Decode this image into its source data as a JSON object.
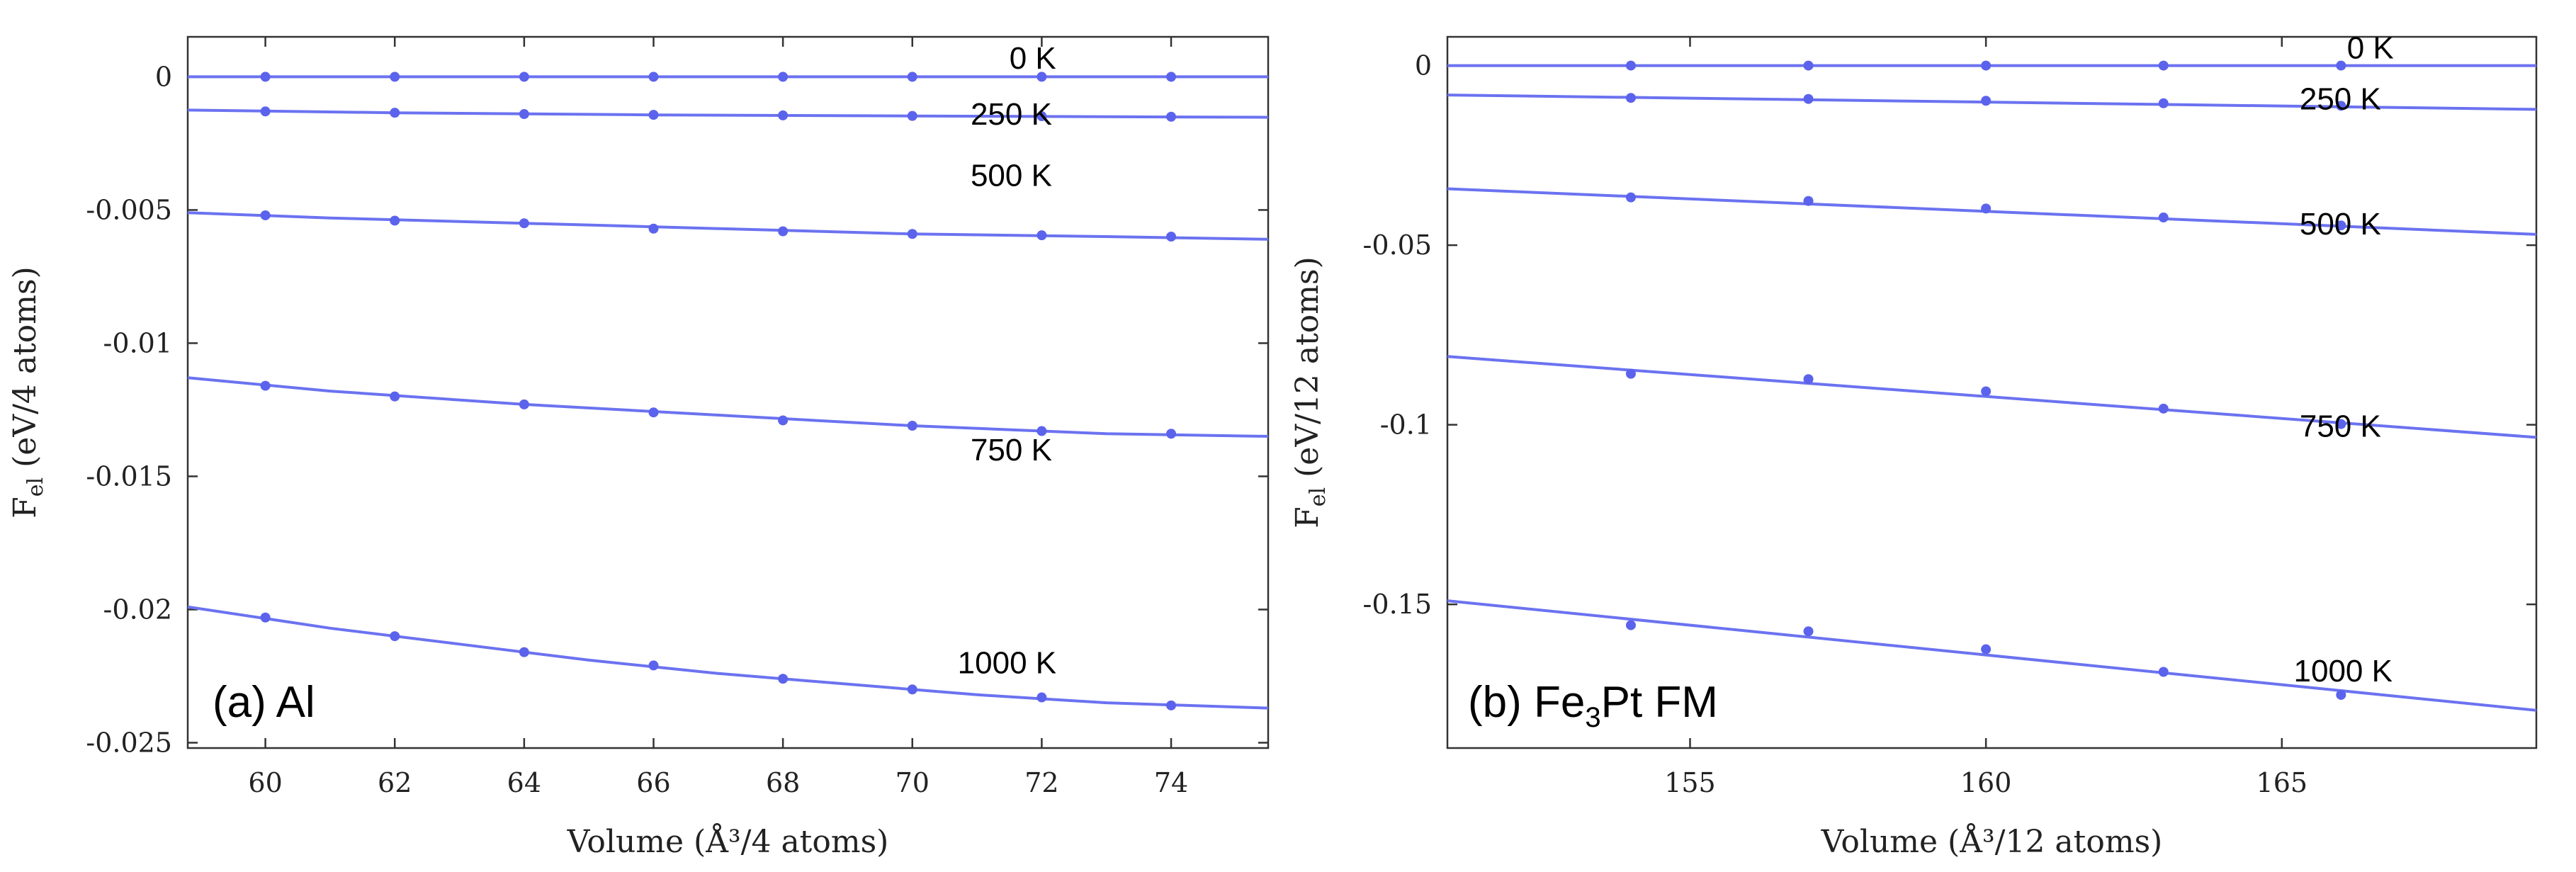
{
  "chart_data": [
    {
      "type": "line",
      "panel_label": "(a) Al",
      "panel_label_parts": [
        {
          "text": "(a) Al",
          "sub": false
        }
      ],
      "xlabel": "Volume (Å³/4 atoms)",
      "ylabel": {
        "main": "F",
        "sub": "el",
        "rest": " (eV/4 atoms)"
      },
      "xlim": [
        58.8,
        75.5
      ],
      "ylim": [
        -0.0252,
        0.0015
      ],
      "xticks": [
        60,
        62,
        64,
        66,
        68,
        70,
        72,
        74
      ],
      "xtick_labels": [
        "60",
        "62",
        "64",
        "66",
        "68",
        "70",
        "72",
        "74"
      ],
      "yticks": [
        0,
        -0.005,
        -0.01,
        -0.015,
        -0.02,
        -0.025
      ],
      "ytick_labels": [
        "0",
        "-0.005",
        "-0.01",
        "-0.015",
        "-0.02",
        "-0.025"
      ],
      "series": [
        {
          "name": "0 K",
          "label_anchor": [
            71.5,
            0.0003
          ],
          "x": [
            60,
            62,
            64,
            66,
            68,
            70,
            72,
            74
          ],
          "y": [
            0,
            0,
            0,
            0,
            0,
            0,
            0,
            0
          ],
          "fit_x": [
            58.8,
            75.5
          ],
          "fit_y": [
            0,
            0
          ]
        },
        {
          "name": "250 K",
          "label_anchor": [
            70.9,
            -0.0018
          ],
          "x": [
            60,
            62,
            64,
            66,
            68,
            70,
            72,
            74
          ],
          "y": [
            -0.0013,
            -0.00135,
            -0.0014,
            -0.00143,
            -0.00145,
            -0.00147,
            -0.00148,
            -0.0015
          ],
          "fit_x": [
            58.8,
            62,
            66,
            70,
            75.5
          ],
          "fit_y": [
            -0.00125,
            -0.00135,
            -0.00143,
            -0.00147,
            -0.00152
          ]
        },
        {
          "name": "500 K",
          "label_anchor": [
            70.9,
            -0.0041
          ],
          "x": [
            60,
            62,
            64,
            66,
            68,
            70,
            72,
            74
          ],
          "y": [
            -0.0052,
            -0.0054,
            -0.0055,
            -0.0057,
            -0.0058,
            -0.0059,
            -0.00595,
            -0.006
          ],
          "fit_x": [
            58.8,
            61,
            64,
            67,
            70,
            73,
            75.5
          ],
          "fit_y": [
            -0.0051,
            -0.0053,
            -0.0055,
            -0.0057,
            -0.0059,
            -0.006,
            -0.0061
          ]
        },
        {
          "name": "750 K",
          "label_anchor": [
            70.9,
            -0.0144
          ],
          "x": [
            60,
            62,
            64,
            66,
            68,
            70,
            72,
            74
          ],
          "y": [
            -0.0116,
            -0.012,
            -0.0123,
            -0.0126,
            -0.0129,
            -0.0131,
            -0.0133,
            -0.0134
          ],
          "fit_x": [
            58.8,
            61,
            64,
            67,
            70,
            73,
            75.5
          ],
          "fit_y": [
            -0.0113,
            -0.0118,
            -0.0123,
            -0.0127,
            -0.0131,
            -0.0134,
            -0.0135
          ]
        },
        {
          "name": "1000 K",
          "label_anchor": [
            70.7,
            -0.0224
          ],
          "x": [
            60,
            62,
            64,
            66,
            68,
            70,
            72,
            74
          ],
          "y": [
            -0.0203,
            -0.021,
            -0.0216,
            -0.0221,
            -0.0226,
            -0.023,
            -0.0233,
            -0.0236
          ],
          "fit_x": [
            58.8,
            61,
            63,
            65,
            67,
            69,
            71,
            73,
            75.5
          ],
          "fit_y": [
            -0.0199,
            -0.0207,
            -0.0213,
            -0.0219,
            -0.0224,
            -0.0228,
            -0.0232,
            -0.0235,
            -0.0237
          ]
        }
      ]
    },
    {
      "type": "line",
      "panel_label": "(b) Fe3Pt FM",
      "panel_label_parts": [
        {
          "text": "(b) Fe",
          "sub": false
        },
        {
          "text": "3",
          "sub": true
        },
        {
          "text": "Pt FM",
          "sub": false
        }
      ],
      "xlabel": "Volume (Å³/12 atoms)",
      "ylabel": {
        "main": "F",
        "sub": "el",
        "rest": " (eV/12 atoms)"
      },
      "xlim": [
        150.9,
        169.3
      ],
      "ylim": [
        -0.19,
        0.008
      ],
      "xticks": [
        155,
        160,
        165
      ],
      "xtick_labels": [
        "155",
        "160",
        "165"
      ],
      "yticks": [
        0,
        -0.05,
        -0.1,
        -0.15
      ],
      "ytick_labels": [
        "0",
        "-0.05",
        "-0.1",
        "-0.15"
      ],
      "series": [
        {
          "name": "0 K",
          "label_anchor": [
            166.1,
            0.002
          ],
          "x": [
            154,
            157,
            160,
            163,
            166
          ],
          "y": [
            0,
            0,
            0,
            0,
            0
          ],
          "fit_x": [
            150.9,
            169.3
          ],
          "fit_y": [
            0,
            0
          ]
        },
        {
          "name": "250 K",
          "label_anchor": [
            165.3,
            -0.0122
          ],
          "x": [
            154,
            157,
            160,
            163,
            166
          ],
          "y": [
            -0.009,
            -0.0093,
            -0.0098,
            -0.0105,
            -0.0112
          ],
          "fit_x": [
            150.9,
            169.3
          ],
          "fit_y": [
            -0.0082,
            -0.0122
          ]
        },
        {
          "name": "500 K",
          "label_anchor": [
            165.3,
            -0.047
          ],
          "x": [
            154,
            157,
            160,
            163,
            166
          ],
          "y": [
            -0.0367,
            -0.0377,
            -0.0398,
            -0.0423,
            -0.0445
          ],
          "fit_x": [
            150.9,
            169.3
          ],
          "fit_y": [
            -0.0343,
            -0.047
          ]
        },
        {
          "name": "750 K",
          "label_anchor": [
            165.3,
            -0.1033
          ],
          "x": [
            154,
            157,
            160,
            163,
            166
          ],
          "y": [
            -0.0858,
            -0.0873,
            -0.0907,
            -0.0955,
            -0.0998
          ],
          "fit_x": [
            150.9,
            169.3
          ],
          "fit_y": [
            -0.081,
            -0.1035
          ]
        },
        {
          "name": "1000 K",
          "label_anchor": [
            165.2,
            -0.1715
          ],
          "x": [
            154,
            157,
            160,
            163,
            166
          ],
          "y": [
            -0.1558,
            -0.1575,
            -0.1625,
            -0.1688,
            -0.1752
          ],
          "fit_x": [
            150.9,
            169.3
          ],
          "fit_y": [
            -0.149,
            -0.1795
          ]
        }
      ]
    }
  ]
}
